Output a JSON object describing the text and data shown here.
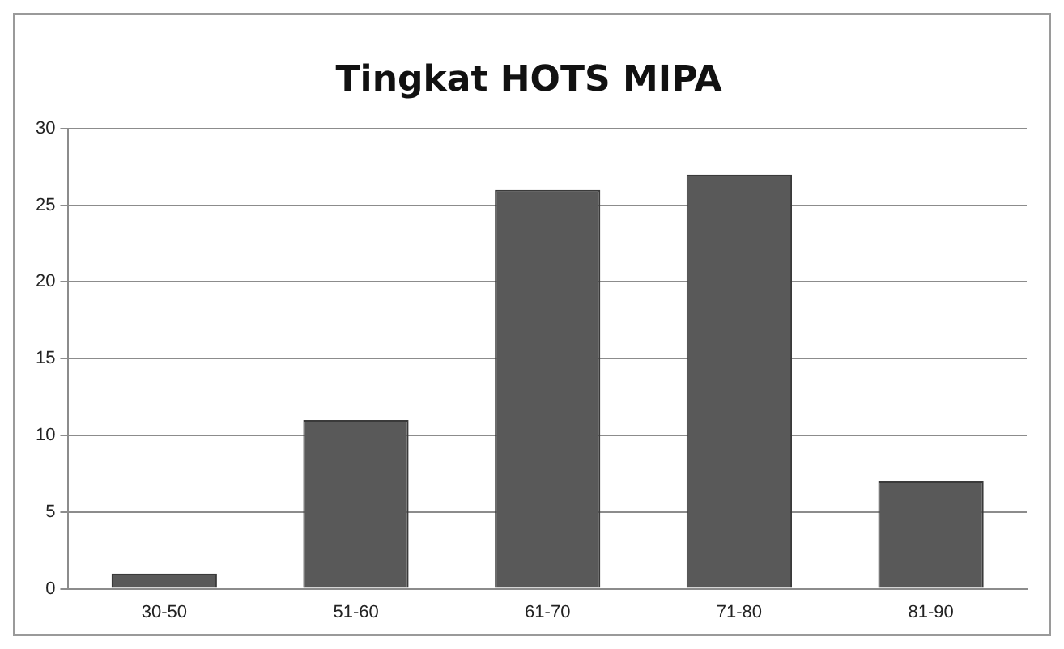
{
  "chart_data": {
    "type": "bar",
    "title": "Tingkat HOTS MIPA",
    "categories": [
      "30-50",
      "51-60",
      "61-70",
      "71-80",
      "81-90"
    ],
    "values": [
      1,
      11,
      26,
      27,
      7
    ],
    "color": "#595959",
    "ylim": [
      0,
      30
    ],
    "yticks": [
      0,
      5,
      10,
      15,
      20,
      25,
      30
    ],
    "grid": "y",
    "legend": false
  }
}
